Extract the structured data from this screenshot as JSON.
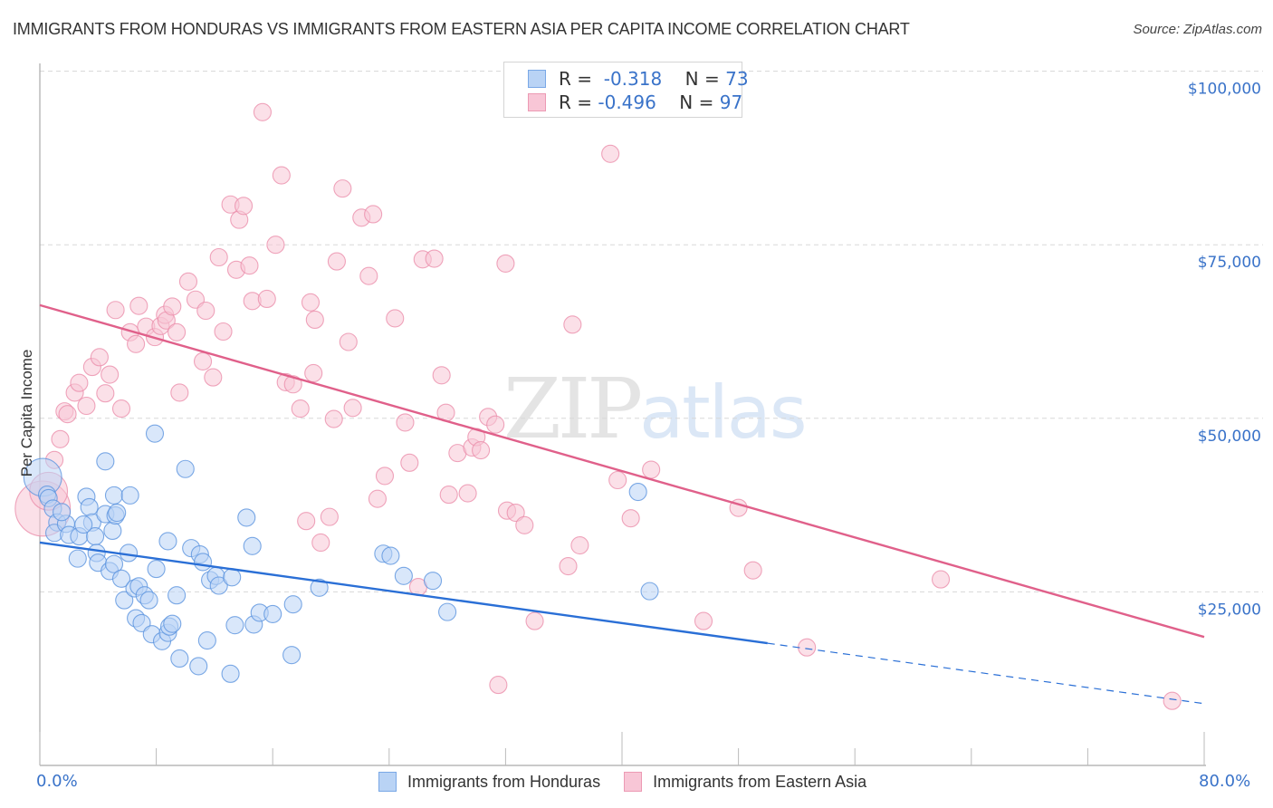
{
  "header": {
    "title": "IMMIGRANTS FROM HONDURAS VS IMMIGRANTS FROM EASTERN ASIA PER CAPITA INCOME CORRELATION CHART",
    "source": "Source: ZipAtlas.com"
  },
  "watermark": {
    "zip": "ZIP",
    "atlas": "atlas"
  },
  "colors": {
    "honduras_fill": "#b9d3f5",
    "honduras_stroke": "#5b93de",
    "honduras_line": "#2a6fd6",
    "eastern_asia_fill": "#f8c6d6",
    "eastern_asia_stroke": "#eb8eab",
    "eastern_asia_line": "#e0608a",
    "axis_text": "#3a73c9"
  },
  "stats": [
    {
      "r_label": "R =",
      "r_value": "-0.318",
      "n_label": "N =",
      "n_value": "73"
    },
    {
      "r_label": "R =",
      "r_value": "-0.496",
      "n_label": "N =",
      "n_value": "97"
    }
  ],
  "chart_data": {
    "type": "scatter",
    "title": "IMMIGRANTS FROM HONDURAS VS IMMIGRANTS FROM EASTERN ASIA PER CAPITA INCOME CORRELATION CHART",
    "xlabel": "",
    "ylabel": "Per Capita Income",
    "xlim": [
      0,
      80
    ],
    "ylim": [
      0,
      104000
    ],
    "x_tick_labels": [
      "0.0%",
      "80.0%"
    ],
    "x_ticks": [
      0,
      8,
      16,
      24,
      32,
      40,
      48,
      56,
      64,
      72,
      80
    ],
    "y_ticks": [
      25000,
      50000,
      75000,
      100000
    ],
    "y_tick_labels": [
      "$25,000",
      "$50,000",
      "$75,000",
      "$100,000"
    ],
    "grid": true,
    "legend_position": "bottom-center",
    "series": [
      {
        "name": "Immigrants from Honduras",
        "R": -0.318,
        "N": 73,
        "trend": {
          "x0": 0,
          "y0": 32100,
          "x1": 80,
          "y1": 8900,
          "solid_until_x": 50
        },
        "points": [
          [
            0.2,
            41500,
            2.2
          ],
          [
            0.5,
            39000
          ],
          [
            0.6,
            38500
          ],
          [
            0.9,
            37000
          ],
          [
            1.2,
            35000
          ],
          [
            1.0,
            33500
          ],
          [
            1.8,
            34800
          ],
          [
            2.0,
            33200
          ],
          [
            2.7,
            33000
          ],
          [
            3.2,
            38700
          ],
          [
            3.4,
            37200
          ],
          [
            3.6,
            35000
          ],
          [
            3.8,
            33000
          ],
          [
            3.9,
            30600
          ],
          [
            4.0,
            29200
          ],
          [
            4.5,
            36200
          ],
          [
            4.8,
            28000
          ],
          [
            5.1,
            38900
          ],
          [
            5.1,
            29000
          ],
          [
            4.5,
            43800
          ],
          [
            5.0,
            33800
          ],
          [
            5.2,
            36000
          ],
          [
            5.3,
            36400
          ],
          [
            5.6,
            26900
          ],
          [
            5.8,
            23800
          ],
          [
            6.2,
            38900
          ],
          [
            6.1,
            30600
          ],
          [
            6.6,
            21200
          ],
          [
            6.5,
            25500
          ],
          [
            6.8,
            25800
          ],
          [
            7.0,
            20500
          ],
          [
            7.2,
            24500
          ],
          [
            7.5,
            23800
          ],
          [
            7.7,
            18900
          ],
          [
            7.9,
            47800
          ],
          [
            8.0,
            28300
          ],
          [
            8.4,
            17900
          ],
          [
            8.8,
            19100
          ],
          [
            8.8,
            32300
          ],
          [
            8.9,
            20000
          ],
          [
            9.1,
            20400
          ],
          [
            9.4,
            24500
          ],
          [
            9.6,
            15400
          ],
          [
            10.0,
            42700
          ],
          [
            10.4,
            31300
          ],
          [
            10.9,
            14300
          ],
          [
            11.0,
            30400
          ],
          [
            11.2,
            29300
          ],
          [
            11.5,
            18000
          ],
          [
            11.7,
            26700
          ],
          [
            12.1,
            27300
          ],
          [
            12.3,
            25900
          ],
          [
            13.2,
            27100
          ],
          [
            13.1,
            13200
          ],
          [
            13.4,
            20200
          ],
          [
            14.2,
            35700
          ],
          [
            14.6,
            31600
          ],
          [
            14.7,
            20300
          ],
          [
            15.1,
            22000
          ],
          [
            16.0,
            21800
          ],
          [
            17.3,
            15900
          ],
          [
            17.4,
            23200
          ],
          [
            19.2,
            25600
          ],
          [
            23.6,
            30500
          ],
          [
            24.1,
            30200
          ],
          [
            25.0,
            27300
          ],
          [
            27.0,
            26600
          ],
          [
            28.0,
            22100
          ],
          [
            41.1,
            39400
          ],
          [
            41.9,
            25100
          ],
          [
            2.6,
            29800
          ],
          [
            3.0,
            34700
          ],
          [
            1.5,
            36500
          ]
        ]
      },
      {
        "name": "Immigrants from Eastern Asia",
        "R": -0.496,
        "N": 97,
        "trend": {
          "x0": 0,
          "y0": 66300,
          "x1": 80,
          "y1": 18500
        },
        "points": [
          [
            0.2,
            37000,
            3.2
          ],
          [
            0.6,
            39500,
            2.2
          ],
          [
            1.0,
            44000
          ],
          [
            1.4,
            47000
          ],
          [
            1.7,
            51000
          ],
          [
            1.9,
            50600
          ],
          [
            2.4,
            53700
          ],
          [
            2.7,
            55100
          ],
          [
            3.2,
            51800
          ],
          [
            3.6,
            57400
          ],
          [
            4.1,
            58800
          ],
          [
            4.5,
            53600
          ],
          [
            4.8,
            56300
          ],
          [
            5.2,
            65600
          ],
          [
            5.6,
            51400
          ],
          [
            6.2,
            62400
          ],
          [
            6.6,
            60700
          ],
          [
            6.8,
            66200
          ],
          [
            7.3,
            63200
          ],
          [
            7.9,
            61700
          ],
          [
            8.3,
            63300
          ],
          [
            8.6,
            64900
          ],
          [
            8.7,
            64100
          ],
          [
            9.1,
            66100
          ],
          [
            9.4,
            62400
          ],
          [
            9.6,
            53700
          ],
          [
            10.2,
            69700
          ],
          [
            10.7,
            67100
          ],
          [
            11.2,
            58200
          ],
          [
            11.4,
            65500
          ],
          [
            11.9,
            55900
          ],
          [
            12.3,
            73200
          ],
          [
            12.6,
            62500
          ],
          [
            13.1,
            80800
          ],
          [
            13.5,
            71400
          ],
          [
            13.7,
            78600
          ],
          [
            14.0,
            80600
          ],
          [
            14.4,
            72000
          ],
          [
            14.6,
            66900
          ],
          [
            15.3,
            94100
          ],
          [
            15.6,
            67200
          ],
          [
            16.2,
            75000
          ],
          [
            16.6,
            85000
          ],
          [
            16.9,
            55200
          ],
          [
            17.4,
            54900
          ],
          [
            17.9,
            51400
          ],
          [
            18.3,
            35200
          ],
          [
            18.6,
            66700
          ],
          [
            18.8,
            56500
          ],
          [
            18.9,
            64200
          ],
          [
            19.3,
            32100
          ],
          [
            19.9,
            35800
          ],
          [
            20.2,
            49900
          ],
          [
            20.4,
            72600
          ],
          [
            20.8,
            83100
          ],
          [
            21.2,
            61000
          ],
          [
            21.5,
            51500
          ],
          [
            22.1,
            78900
          ],
          [
            22.6,
            70500
          ],
          [
            22.9,
            79400
          ],
          [
            23.2,
            38400
          ],
          [
            23.7,
            41700
          ],
          [
            24.4,
            64400
          ],
          [
            25.1,
            49400
          ],
          [
            25.4,
            43600
          ],
          [
            26.0,
            25700
          ],
          [
            26.3,
            72900
          ],
          [
            27.1,
            73000
          ],
          [
            27.6,
            56200
          ],
          [
            27.9,
            50800
          ],
          [
            28.1,
            39000
          ],
          [
            28.7,
            45000
          ],
          [
            29.4,
            39200
          ],
          [
            29.7,
            45800
          ],
          [
            30.0,
            47300
          ],
          [
            30.3,
            45400
          ],
          [
            30.8,
            50200
          ],
          [
            31.3,
            49100
          ],
          [
            31.5,
            11600
          ],
          [
            32.0,
            72300
          ],
          [
            32.1,
            36700
          ],
          [
            32.7,
            36400
          ],
          [
            33.3,
            34600
          ],
          [
            34.0,
            20800
          ],
          [
            36.3,
            28700
          ],
          [
            36.6,
            63500
          ],
          [
            37.1,
            31700
          ],
          [
            39.2,
            88100
          ],
          [
            39.7,
            41100
          ],
          [
            40.6,
            35600
          ],
          [
            42.0,
            42600
          ],
          [
            45.6,
            20800
          ],
          [
            48.0,
            37100
          ],
          [
            49.0,
            28100
          ],
          [
            52.7,
            17000
          ],
          [
            61.9,
            26800
          ],
          [
            77.8,
            9300
          ]
        ]
      }
    ]
  },
  "legend": {
    "items": [
      {
        "label": "Immigrants from Honduras"
      },
      {
        "label": "Immigrants from Eastern Asia"
      }
    ]
  }
}
